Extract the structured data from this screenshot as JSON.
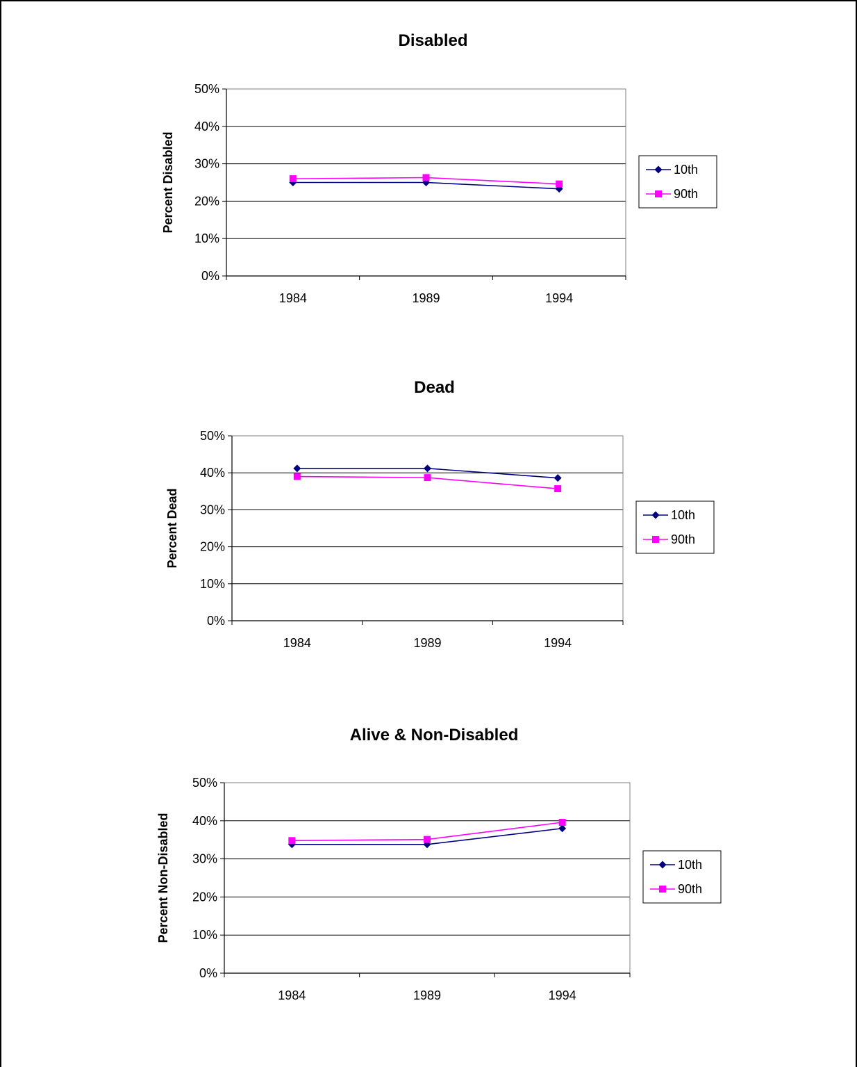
{
  "chart_data": [
    {
      "type": "line",
      "title": "Disabled",
      "xlabel": "",
      "ylabel": "Percent Disabled",
      "ylim": [
        0,
        50
      ],
      "yticks": [
        "0%",
        "10%",
        "20%",
        "30%",
        "40%",
        "50%"
      ],
      "categories": [
        "1984",
        "1989",
        "1994"
      ],
      "grid": "horizontal",
      "legend": "right",
      "series": [
        {
          "name": "10th",
          "color": "#000080",
          "marker": "diamond",
          "values": [
            25,
            25,
            23.3
          ]
        },
        {
          "name": "90th",
          "color": "#ff00ff",
          "marker": "square",
          "values": [
            26,
            26.3,
            24.6
          ]
        }
      ]
    },
    {
      "type": "line",
      "title": "Dead",
      "xlabel": "",
      "ylabel": "Percent Dead",
      "ylim": [
        0,
        50
      ],
      "yticks": [
        "0%",
        "10%",
        "20%",
        "30%",
        "40%",
        "50%"
      ],
      "categories": [
        "1984",
        "1989",
        "1994"
      ],
      "grid": "horizontal",
      "legend": "right",
      "series": [
        {
          "name": "10th",
          "color": "#000080",
          "marker": "diamond",
          "values": [
            41.2,
            41.2,
            38.6
          ]
        },
        {
          "name": "90th",
          "color": "#ff00ff",
          "marker": "square",
          "values": [
            39,
            38.7,
            35.7
          ]
        }
      ]
    },
    {
      "type": "line",
      "title": "Alive & Non-Disabled",
      "xlabel": "",
      "ylabel": "Percent Non-Disabled",
      "ylim": [
        0,
        50
      ],
      "yticks": [
        "0%",
        "10%",
        "20%",
        "30%",
        "40%",
        "50%"
      ],
      "categories": [
        "1984",
        "1989",
        "1994"
      ],
      "grid": "horizontal",
      "legend": "right",
      "series": [
        {
          "name": "10th",
          "color": "#000080",
          "marker": "diamond",
          "values": [
            33.8,
            33.8,
            38
          ]
        },
        {
          "name": "90th",
          "color": "#ff00ff",
          "marker": "square",
          "values": [
            34.8,
            35.1,
            39.6
          ]
        }
      ]
    }
  ]
}
